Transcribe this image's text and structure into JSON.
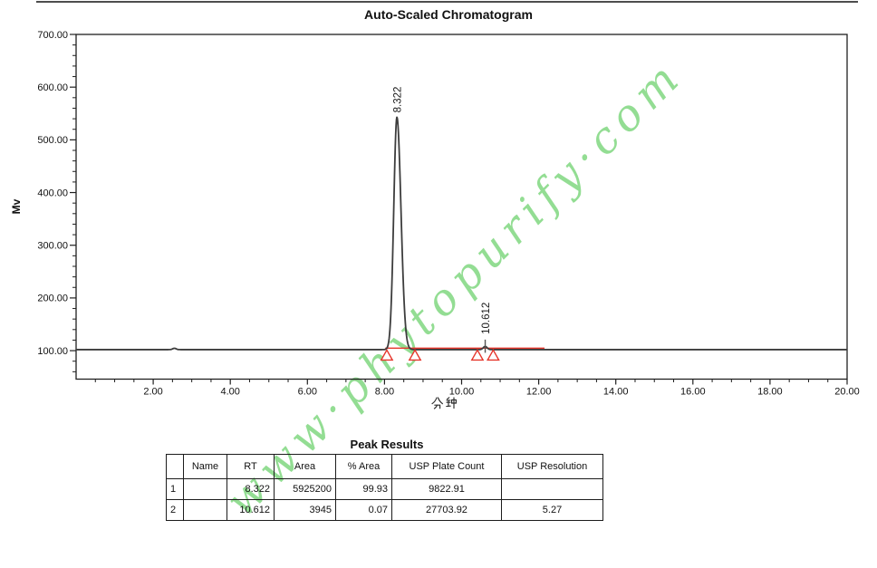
{
  "page": {
    "title": "Auto-Scaled Chromatogram"
  },
  "chart_data": {
    "type": "line",
    "title": "Auto-Scaled Chromatogram",
    "xlabel": "分钟",
    "ylabel": "Mv",
    "xlim": [
      0,
      20
    ],
    "ylim": [
      46,
      700
    ],
    "x_major_ticks": [
      2,
      4,
      6,
      8,
      10,
      12,
      14,
      16,
      18,
      20
    ],
    "x_minor_step": 0.5,
    "y_major_ticks": [
      100,
      200,
      300,
      400,
      500,
      600,
      700
    ],
    "y_minor_step": 20,
    "grid": false,
    "baseline_mv": 102,
    "signal_color": "#3d3d3d",
    "integration_color": "#e5352b",
    "red_baseline_span": [
      8.02,
      12.15
    ],
    "minor_blip": {
      "rt": 2.55,
      "height_mv": 2.5,
      "sigma": 0.045
    },
    "peaks": [
      {
        "label": "8.322",
        "rt": 8.322,
        "apex_mv": 543,
        "height_mv": 441,
        "sigma_left": 0.082,
        "sigma_right": 0.105,
        "int_start": 8.06,
        "int_end": 8.79,
        "marker_dash_mv": null
      },
      {
        "label": "10.612",
        "rt": 10.612,
        "apex_mv": 108,
        "height_mv": 6,
        "sigma_left": 0.05,
        "sigma_right": 0.05,
        "int_start": 10.41,
        "int_end": 10.82,
        "marker_dash_mv": [
          96,
          121
        ]
      }
    ]
  },
  "watermark": {
    "text": "www·phytopurify·com",
    "color": "#8edc8e"
  },
  "results_table": {
    "title": "Peak Results",
    "columns": [
      "",
      "Name",
      "RT",
      "Area",
      "% Area",
      "USP Plate Count",
      "USP Resolution"
    ],
    "rows": [
      [
        "1",
        "",
        "8.322",
        "5925200",
        "99.93",
        "9822.91",
        ""
      ],
      [
        "2",
        "",
        "10.612",
        "3945",
        "0.07",
        "27703.92",
        "5.27"
      ]
    ]
  }
}
